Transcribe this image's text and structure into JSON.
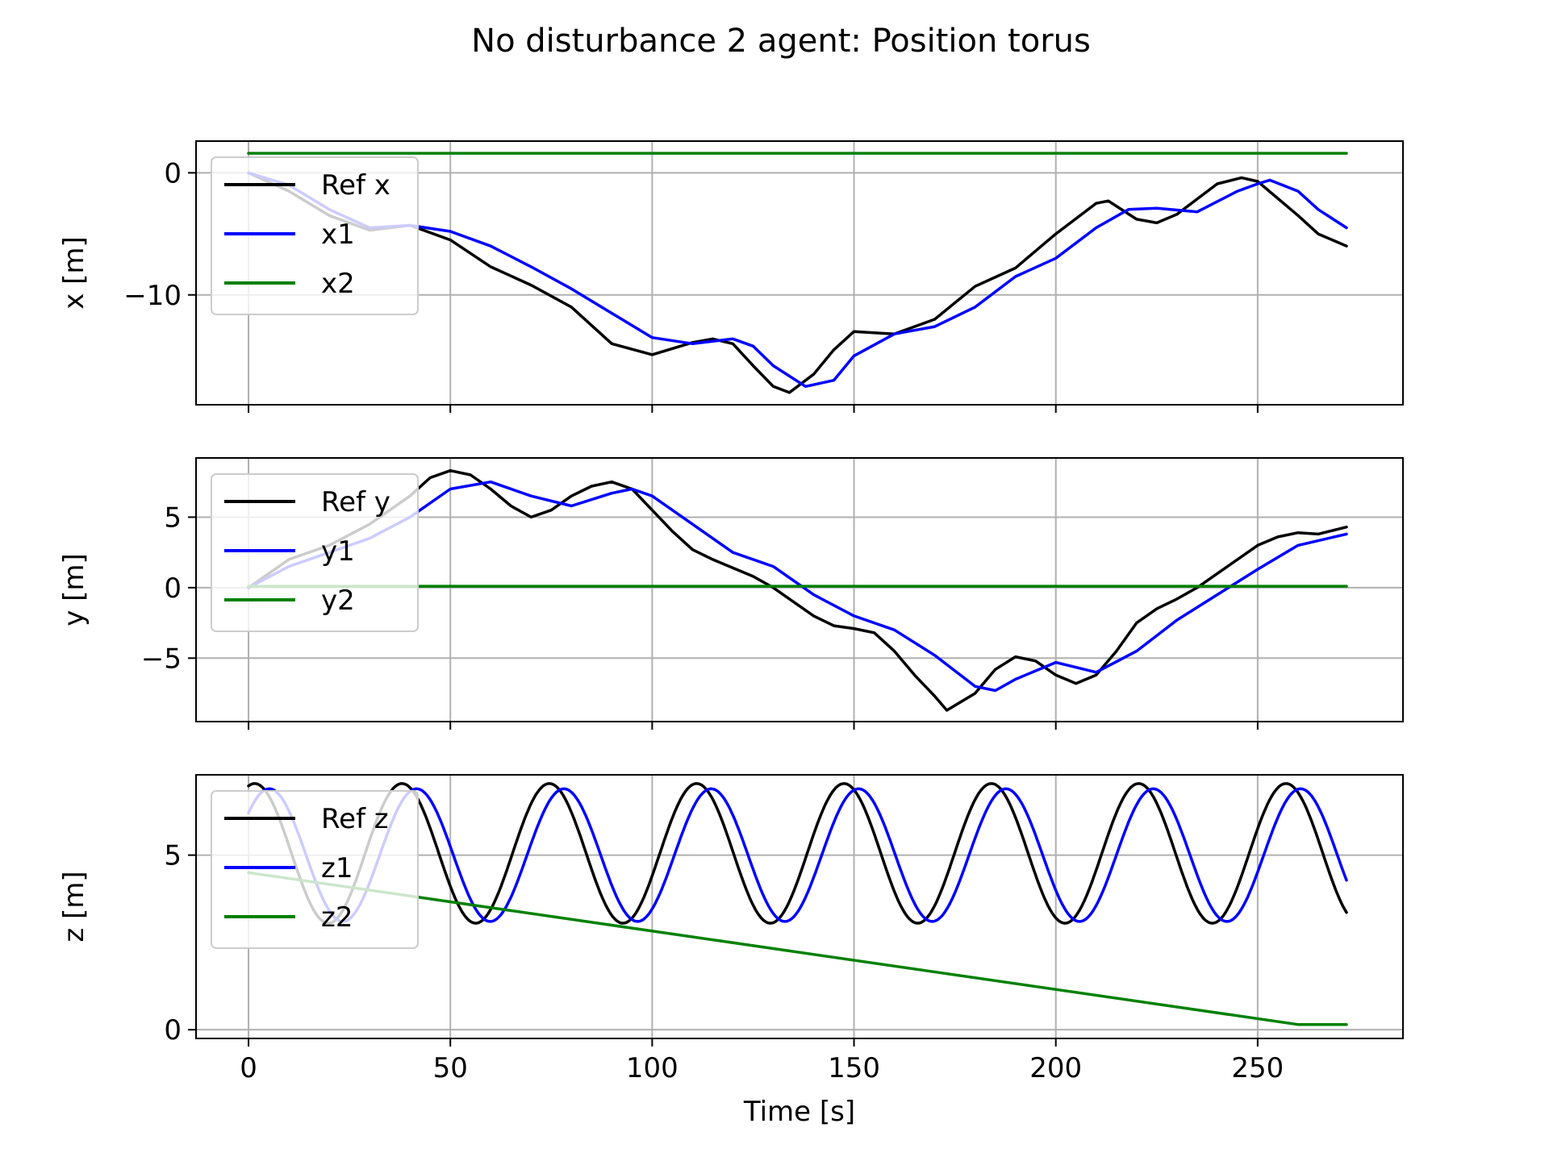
{
  "figure": {
    "title": "No disturbance 2 agent: Position torus"
  },
  "colors": {
    "ref": "#000000",
    "agent1": "#0000ff",
    "agent2": "#008000",
    "grid": "#b0b0b0"
  },
  "chart_data": [
    {
      "type": "line",
      "title": "",
      "xlabel": "",
      "ylabel": "x [m]",
      "xlim": [
        -13,
        286
      ],
      "ylim": [
        -19.0,
        2.6
      ],
      "xticks": [
        0,
        50,
        100,
        150,
        200,
        250
      ],
      "xtick_labels": [
        "",
        "",
        "",
        "",
        "",
        ""
      ],
      "yticks": [
        0,
        -10
      ],
      "ytick_labels": [
        "0",
        "−10"
      ],
      "grid": true,
      "legend_position": "upper left",
      "series": [
        {
          "name": "Ref x",
          "color": "#000000",
          "x": [
            0,
            10,
            20,
            30,
            40,
            50,
            60,
            70,
            80,
            90,
            100,
            110,
            115,
            120,
            125,
            130,
            134,
            140,
            145,
            150,
            160,
            170,
            180,
            190,
            200,
            210,
            213,
            220,
            225,
            230,
            240,
            246,
            250,
            260,
            265,
            272
          ],
          "y": [
            0,
            -1.5,
            -3.5,
            -4.7,
            -4.3,
            -5.5,
            -7.7,
            -9.2,
            -11.0,
            -14.0,
            -14.9,
            -13.9,
            -13.6,
            -14.0,
            -15.8,
            -17.5,
            -18.0,
            -16.5,
            -14.5,
            -13.0,
            -13.2,
            -12.0,
            -9.3,
            -7.8,
            -5.0,
            -2.5,
            -2.3,
            -3.8,
            -4.1,
            -3.4,
            -0.9,
            -0.4,
            -0.7,
            -3.5,
            -5.0,
            -6.0
          ]
        },
        {
          "name": "x1",
          "color": "#0000ff",
          "x": [
            0,
            10,
            20,
            30,
            40,
            50,
            60,
            70,
            80,
            90,
            100,
            110,
            115,
            120,
            125,
            130,
            138,
            145,
            150,
            160,
            170,
            180,
            190,
            200,
            210,
            218,
            225,
            235,
            245,
            250,
            253,
            260,
            265,
            272
          ],
          "y": [
            0,
            -1.0,
            -3.0,
            -4.5,
            -4.3,
            -4.8,
            -6.0,
            -7.7,
            -9.5,
            -11.5,
            -13.5,
            -14.0,
            -13.8,
            -13.6,
            -14.2,
            -15.8,
            -17.5,
            -17.0,
            -15.0,
            -13.2,
            -12.6,
            -11.0,
            -8.5,
            -7.0,
            -4.5,
            -3.0,
            -2.9,
            -3.2,
            -1.5,
            -0.9,
            -0.6,
            -1.5,
            -3.0,
            -4.5
          ]
        },
        {
          "name": "x2",
          "color": "#008000",
          "x": [
            0,
            272
          ],
          "y": [
            1.6,
            1.6
          ]
        }
      ]
    },
    {
      "type": "line",
      "title": "",
      "xlabel": "",
      "ylabel": "y [m]",
      "xlim": [
        -13,
        286
      ],
      "ylim": [
        -9.5,
        9.2
      ],
      "xticks": [
        0,
        50,
        100,
        150,
        200,
        250
      ],
      "xtick_labels": [
        "",
        "",
        "",
        "",
        "",
        ""
      ],
      "yticks": [
        5,
        0,
        -5
      ],
      "ytick_labels": [
        "5",
        "0",
        "−5"
      ],
      "grid": true,
      "legend_position": "upper left",
      "series": [
        {
          "name": "Ref y",
          "color": "#000000",
          "x": [
            0,
            10,
            20,
            30,
            40,
            45,
            50,
            55,
            60,
            65,
            70,
            75,
            80,
            85,
            90,
            95,
            100,
            105,
            110,
            115,
            120,
            125,
            130,
            135,
            140,
            145,
            150,
            155,
            160,
            165,
            170,
            173,
            180,
            185,
            190,
            195,
            200,
            205,
            210,
            215,
            220,
            225,
            230,
            235,
            240,
            245,
            250,
            255,
            260,
            265,
            272
          ],
          "y": [
            0,
            2.0,
            3.0,
            4.5,
            6.5,
            7.8,
            8.3,
            8.0,
            7.0,
            5.8,
            5.0,
            5.5,
            6.5,
            7.2,
            7.5,
            7.0,
            5.5,
            4.0,
            2.7,
            2.0,
            1.4,
            0.8,
            0.0,
            -1.0,
            -2.0,
            -2.7,
            -2.9,
            -3.2,
            -4.5,
            -6.2,
            -7.7,
            -8.7,
            -7.5,
            -5.8,
            -4.9,
            -5.2,
            -6.2,
            -6.8,
            -6.2,
            -4.5,
            -2.5,
            -1.5,
            -0.8,
            0.0,
            1.0,
            2.0,
            3.0,
            3.6,
            3.9,
            3.8,
            4.3
          ]
        },
        {
          "name": "y1",
          "color": "#0000ff",
          "x": [
            0,
            10,
            20,
            30,
            40,
            50,
            60,
            70,
            80,
            90,
            95,
            100,
            110,
            120,
            130,
            140,
            150,
            160,
            170,
            180,
            185,
            190,
            200,
            210,
            220,
            230,
            240,
            250,
            260,
            272
          ],
          "y": [
            0,
            1.5,
            2.5,
            3.5,
            5.0,
            7.0,
            7.5,
            6.5,
            5.8,
            6.7,
            7.0,
            6.5,
            4.5,
            2.5,
            1.5,
            -0.5,
            -2.0,
            -3.0,
            -4.8,
            -7.0,
            -7.3,
            -6.5,
            -5.3,
            -6.0,
            -4.5,
            -2.3,
            -0.5,
            1.3,
            3.0,
            3.8
          ]
        },
        {
          "name": "y2",
          "color": "#008000",
          "x": [
            0,
            272
          ],
          "y": [
            0.1,
            0.1
          ]
        }
      ]
    },
    {
      "type": "line",
      "title": "",
      "xlabel": "Time [s]",
      "ylabel": "z [m]",
      "xlim": [
        -13,
        286
      ],
      "ylim": [
        -0.25,
        7.3
      ],
      "xticks": [
        0,
        50,
        100,
        150,
        200,
        250
      ],
      "xtick_labels": [
        "0",
        "50",
        "100",
        "150",
        "200",
        "250"
      ],
      "yticks": [
        0,
        5
      ],
      "ytick_labels": [
        "0",
        "5"
      ],
      "grid": true,
      "legend_position": "upper left",
      "series": [
        {
          "name": "Ref z",
          "color": "#000000",
          "sinusoid": {
            "x_start": 0,
            "x_end": 272,
            "mean": 5.05,
            "amplitude": 2.0,
            "period": 36.5,
            "phase_offset": -7.6
          }
        },
        {
          "name": "z1",
          "color": "#0000ff",
          "sinusoid": {
            "x_start": 0,
            "x_end": 272,
            "mean": 5.0,
            "amplitude": 1.9,
            "period": 36.5,
            "phase_offset": -4.0
          }
        },
        {
          "name": "z2",
          "color": "#008000",
          "x": [
            0,
            260,
            272
          ],
          "y": [
            4.5,
            0.15,
            0.15
          ]
        }
      ]
    }
  ]
}
